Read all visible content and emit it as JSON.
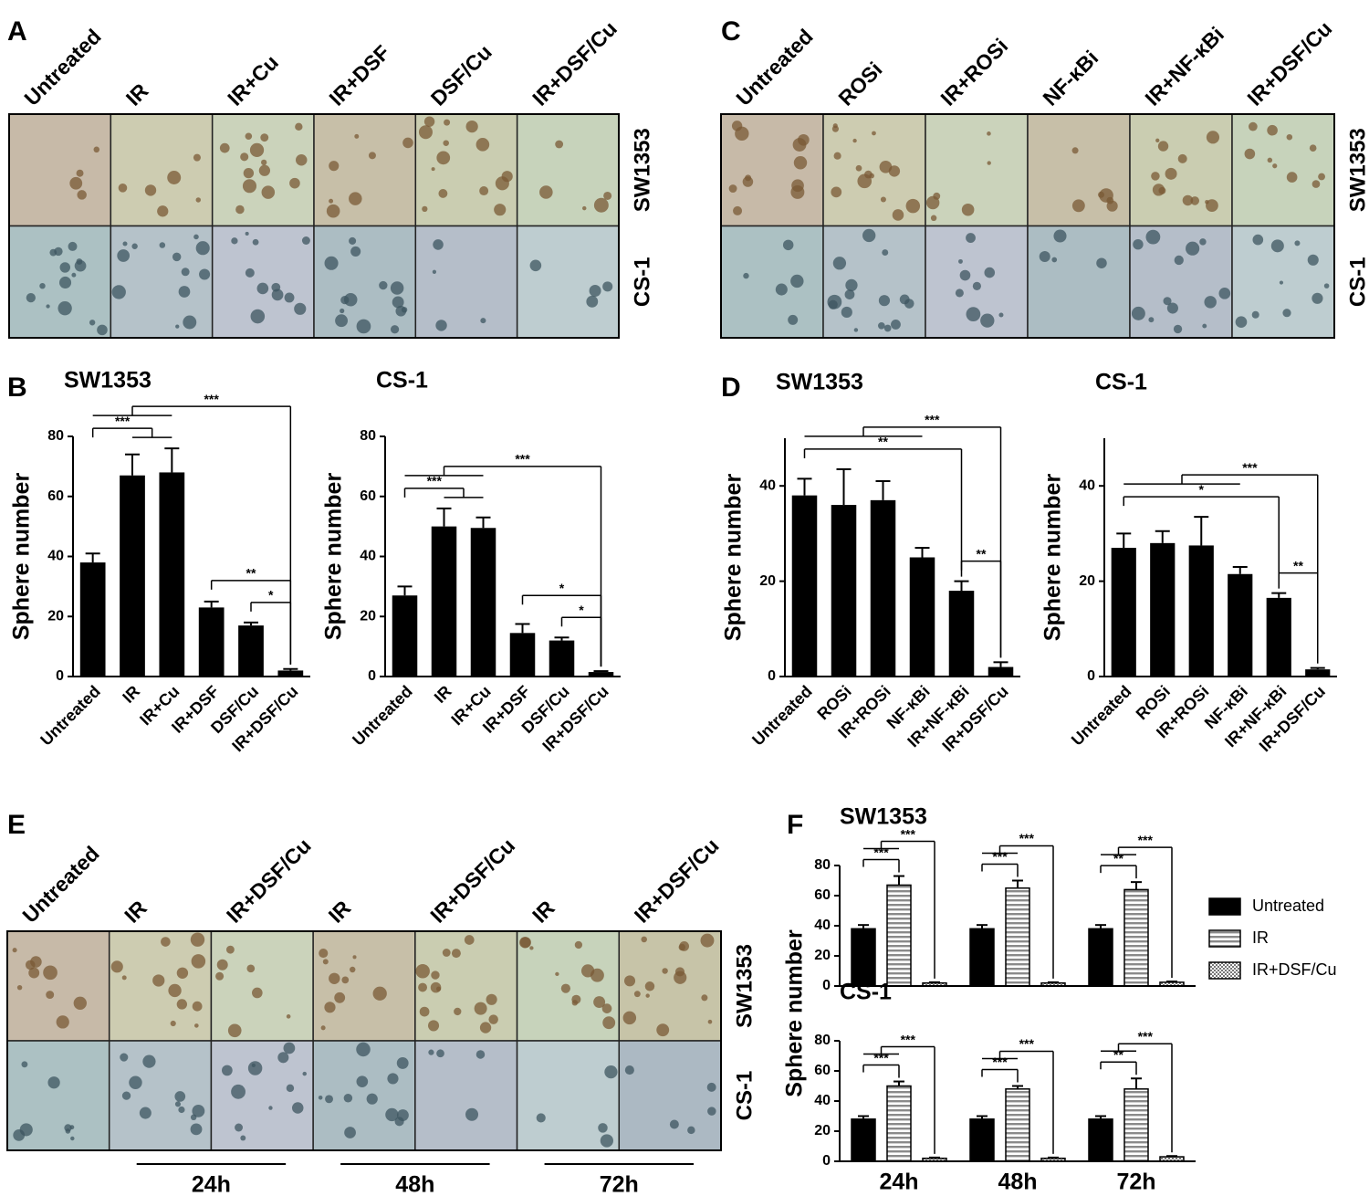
{
  "panel_labels": [
    "A",
    "B",
    "C",
    "D",
    "E",
    "F"
  ],
  "image_panels": [
    {
      "columns": [
        "Untreated",
        "IR",
        "IR+Cu",
        "IR+DSF",
        "DSF/Cu",
        "IR+DSF/Cu"
      ],
      "rows": [
        "SW1353",
        "CS-1"
      ]
    },
    {
      "columns": [
        "Untreated",
        "ROSi",
        "IR+ROSi",
        "NF-κBi",
        "IR+NF-κBi",
        "IR+DSF/Cu"
      ],
      "rows": [
        "SW1353",
        "CS-1"
      ]
    },
    {
      "columns": [
        "Untreated",
        "IR",
        "IR+DSF/Cu",
        "IR",
        "IR+DSF/Cu",
        "IR",
        "IR+DSF/Cu"
      ],
      "rows": [
        "SW1353",
        "CS-1"
      ],
      "time_labels": [
        "24h",
        "48h",
        "72h"
      ]
    }
  ],
  "chart_data": [
    {
      "type": "bar",
      "title": "SW1353",
      "ylabel": "Sphere number",
      "color": "#000000",
      "categories": [
        "Untreated",
        "IR",
        "IR+Cu",
        "IR+DSF",
        "DSF/Cu",
        "IR+DSF/Cu"
      ],
      "values": [
        38,
        67,
        68,
        23,
        17,
        2
      ],
      "errors": [
        3,
        7,
        8,
        2,
        1,
        0.5
      ],
      "ylim": [
        0,
        80
      ],
      "yticks": [
        0,
        20,
        40,
        60,
        80
      ],
      "annotations": [
        {
          "text": "***",
          "from": [
            "Untreated"
          ],
          "to": [
            "IR",
            "IR+Cu"
          ]
        },
        {
          "text": "*",
          "from": [
            "DSF/Cu"
          ],
          "to": [
            "IR+DSF/Cu"
          ]
        },
        {
          "text": "**",
          "from": [
            "IR+DSF"
          ],
          "to": [
            "IR+DSF/Cu"
          ]
        },
        {
          "text": "***",
          "from": [
            "Untreated",
            "IR",
            "IR+Cu"
          ],
          "to": [
            "IR+DSF/Cu"
          ]
        }
      ]
    },
    {
      "type": "bar",
      "title": "CS-1",
      "ylabel": "Sphere number",
      "color": "#000000",
      "categories": [
        "Untreated",
        "IR",
        "IR+Cu",
        "IR+DSF",
        "DSF/Cu",
        "IR+DSF/Cu"
      ],
      "values": [
        27,
        50,
        49.5,
        14.5,
        12,
        1.5
      ],
      "errors": [
        3,
        6,
        3.5,
        3,
        1,
        0.3
      ],
      "ylim": [
        0,
        80
      ],
      "yticks": [
        0,
        20,
        40,
        60,
        80
      ],
      "annotations": [
        {
          "text": "***",
          "from": [
            "Untreated"
          ],
          "to": [
            "IR",
            "IR+Cu"
          ]
        },
        {
          "text": "*",
          "from": [
            "DSF/Cu"
          ],
          "to": [
            "IR+DSF/Cu"
          ]
        },
        {
          "text": "*",
          "from": [
            "IR+DSF"
          ],
          "to": [
            "IR+DSF/Cu"
          ]
        },
        {
          "text": "***",
          "from": [
            "Untreated",
            "IR",
            "IR+Cu"
          ],
          "to": [
            "IR+DSF/Cu"
          ]
        }
      ]
    },
    {
      "type": "bar",
      "title": "SW1353",
      "ylabel": "Sphere number",
      "color": "#000000",
      "categories": [
        "Untreated",
        "ROSi",
        "IR+ROSi",
        "NF-κBi",
        "IR+NF-κBi",
        "IR+DSF/Cu"
      ],
      "values": [
        38,
        36,
        37,
        25,
        18,
        2
      ],
      "errors": [
        3.5,
        7.5,
        4,
        2,
        2,
        1
      ],
      "ylim": [
        0,
        50
      ],
      "yticks": [
        0,
        20,
        40
      ],
      "annotations": [
        {
          "text": "**",
          "from": [
            "IR+NF-κBi"
          ],
          "to": [
            "IR+DSF/Cu"
          ]
        },
        {
          "text": "**",
          "from": [
            "Untreated"
          ],
          "to": [
            "IR+NF-κBi"
          ]
        },
        {
          "text": "***",
          "from": [
            "Untreated",
            "ROSi",
            "IR+ROSi",
            "NF-κBi"
          ],
          "to": [
            "IR+DSF/Cu"
          ]
        }
      ]
    },
    {
      "type": "bar",
      "title": "CS-1",
      "ylabel": "Sphere number",
      "color": "#000000",
      "categories": [
        "Untreated",
        "ROSi",
        "IR+ROSi",
        "NF-κBi",
        "IR+NF-κBi",
        "IR+DSF/Cu"
      ],
      "values": [
        27,
        28,
        27.5,
        21.5,
        16.5,
        1.5
      ],
      "errors": [
        3,
        2.5,
        6,
        1.5,
        1,
        0.3
      ],
      "ylim": [
        0,
        50
      ],
      "yticks": [
        0,
        20,
        40
      ],
      "annotations": [
        {
          "text": "**",
          "from": [
            "IR+NF-κBi"
          ],
          "to": [
            "IR+DSF/Cu"
          ]
        },
        {
          "text": "*",
          "from": [
            "Untreated"
          ],
          "to": [
            "IR+NF-κBi"
          ]
        },
        {
          "text": "***",
          "from": [
            "Untreated",
            "ROSi",
            "IR+ROSi",
            "NF-κBi"
          ],
          "to": [
            "IR+DSF/Cu"
          ]
        }
      ]
    },
    {
      "type": "grouped-bar",
      "ylabel": "Sphere number",
      "categories": [
        "24h",
        "48h",
        "72h"
      ],
      "series": [
        {
          "name": "Untreated",
          "color": "#000000"
        },
        {
          "name": "IR",
          "color": "#000000",
          "pattern": "stripes"
        },
        {
          "name": "IR+DSF/Cu",
          "color": "#000000",
          "pattern": "checker"
        }
      ],
      "subplots": [
        {
          "title": "SW1353",
          "ylim": [
            0,
            80
          ],
          "yticks": [
            0,
            20,
            40,
            60,
            80
          ],
          "series": [
            {
              "values": [
                38,
                38,
                38
              ],
              "errors": [
                2.5,
                2.5,
                2.5
              ]
            },
            {
              "values": [
                67,
                65,
                64
              ],
              "errors": [
                6,
                5,
                5
              ]
            },
            {
              "values": [
                2,
                2,
                2.5
              ],
              "errors": [
                0.5,
                0.5,
                0.5
              ]
            }
          ],
          "annotations": [
            {
              "text": "***",
              "category": "24h",
              "from": [
                "Untreated"
              ],
              "to": [
                "IR"
              ]
            },
            {
              "text": "***",
              "category": "24h",
              "from": [
                "Untreated",
                "IR"
              ],
              "to": [
                "IR+DSF/Cu"
              ]
            },
            {
              "text": "***",
              "category": "48h",
              "from": [
                "Untreated"
              ],
              "to": [
                "IR"
              ]
            },
            {
              "text": "***",
              "category": "48h",
              "from": [
                "Untreated",
                "IR"
              ],
              "to": [
                "IR+DSF/Cu"
              ]
            },
            {
              "text": "**",
              "category": "72h",
              "from": [
                "Untreated"
              ],
              "to": [
                "IR"
              ]
            },
            {
              "text": "***",
              "category": "72h",
              "from": [
                "Untreated",
                "IR"
              ],
              "to": [
                "IR+DSF/Cu"
              ]
            }
          ]
        },
        {
          "title": "CS-1",
          "ylim": [
            0,
            80
          ],
          "yticks": [
            0,
            20,
            40,
            60,
            80
          ],
          "series": [
            {
              "values": [
                28,
                28,
                28
              ],
              "errors": [
                2,
                2,
                2
              ]
            },
            {
              "values": [
                50,
                48,
                48
              ],
              "errors": [
                3,
                2,
                7
              ]
            },
            {
              "values": [
                2,
                2,
                3
              ],
              "errors": [
                0.5,
                0.5,
                0.5
              ]
            }
          ],
          "annotations": [
            {
              "text": "***",
              "category": "24h",
              "from": [
                "Untreated"
              ],
              "to": [
                "IR"
              ]
            },
            {
              "text": "***",
              "category": "24h",
              "from": [
                "Untreated",
                "IR"
              ],
              "to": [
                "IR+DSF/Cu"
              ]
            },
            {
              "text": "***",
              "category": "48h",
              "from": [
                "Untreated"
              ],
              "to": [
                "IR"
              ]
            },
            {
              "text": "***",
              "category": "48h",
              "from": [
                "Untreated",
                "IR"
              ],
              "to": [
                "IR+DSF/Cu"
              ]
            },
            {
              "text": "**",
              "category": "72h",
              "from": [
                "Untreated"
              ],
              "to": [
                "IR"
              ]
            },
            {
              "text": "***",
              "category": "72h",
              "from": [
                "Untreated",
                "IR"
              ],
              "to": [
                "IR+DSF/Cu"
              ]
            }
          ]
        }
      ]
    }
  ]
}
